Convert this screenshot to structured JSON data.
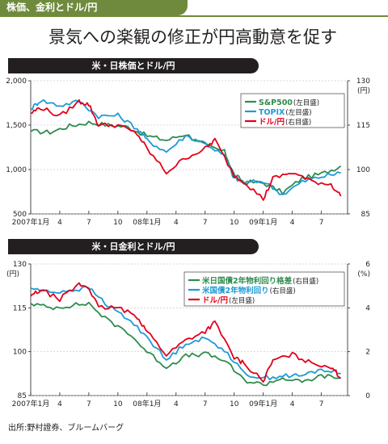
{
  "topic_tag": "株価、金利とドル/円",
  "headline": "景気への楽観の修正が円高動意を促す",
  "source": "出所:野村證券、ブルームバーグ",
  "colors": {
    "green": "#2e8b4e",
    "blue": "#1e9ad6",
    "red": "#e2001a",
    "brand": "#6f8a3c"
  },
  "chart_data": [
    {
      "type": "line",
      "title": "米・日株価とドル/円",
      "x_tick_labels": [
        "2007年1月",
        "4",
        "7",
        "10",
        "08年1月",
        "4",
        "7",
        "10",
        "09年1月",
        "4",
        "7"
      ],
      "x_range": [
        "2007-01",
        "2009-09"
      ],
      "left_axis": {
        "ticks": [
          "2,000",
          "1,500",
          "1,000",
          "500"
        ],
        "range": [
          500,
          2000
        ]
      },
      "right_axis": {
        "unit": "(円)",
        "ticks": [
          "130",
          "115",
          "100",
          "85"
        ],
        "range": [
          85,
          130
        ]
      },
      "legend_placement": "top-right",
      "series": [
        {
          "name": "S&P500",
          "axis_note": "(左目盛)",
          "color": "#2e8b4e",
          "axis": "left",
          "x": [
            "2007-01",
            "2007-03",
            "2007-05",
            "2007-07",
            "2007-09",
            "2007-11",
            "2008-01",
            "2008-03",
            "2008-05",
            "2008-07",
            "2008-09",
            "2008-10",
            "2008-11",
            "2009-01",
            "2009-03",
            "2009-05",
            "2009-07",
            "2009-09"
          ],
          "values": [
            1430,
            1420,
            1490,
            1530,
            1500,
            1480,
            1380,
            1330,
            1400,
            1270,
            1200,
            940,
            860,
            850,
            740,
            900,
            950,
            1040
          ]
        },
        {
          "name": "TOPIX",
          "axis_note": "(左目盛)",
          "color": "#1e9ad6",
          "axis": "left",
          "x": [
            "2007-01",
            "2007-02",
            "2007-04",
            "2007-06",
            "2007-08",
            "2007-10",
            "2007-12",
            "2008-01",
            "2008-03",
            "2008-05",
            "2008-07",
            "2008-09",
            "2008-10",
            "2008-11",
            "2009-01",
            "2009-03",
            "2009-05",
            "2009-07",
            "2009-09"
          ],
          "values": [
            1680,
            1780,
            1720,
            1770,
            1600,
            1610,
            1460,
            1330,
            1200,
            1380,
            1300,
            1150,
            900,
            850,
            870,
            720,
            860,
            920,
            960
          ]
        },
        {
          "name": "ドル/円",
          "axis_note": "(右目盛)",
          "color": "#e2001a",
          "axis": "right",
          "x": [
            "2007-01",
            "2007-02",
            "2007-04",
            "2007-06",
            "2007-07",
            "2007-08",
            "2007-10",
            "2007-12",
            "2008-01",
            "2008-03",
            "2008-05",
            "2008-07",
            "2008-08",
            "2008-10",
            "2008-11",
            "2009-01",
            "2009-02",
            "2009-04",
            "2009-06",
            "2009-08",
            "2009-09"
          ],
          "values": [
            119,
            121,
            118,
            123,
            122,
            115,
            115,
            112,
            107,
            99,
            104,
            107,
            110,
            98,
            96,
            90,
            97,
            99,
            96,
            95,
            91
          ]
        }
      ]
    },
    {
      "type": "line",
      "title": "米・日金利とドル/円",
      "x_tick_labels": [
        "2007年1月",
        "4",
        "7",
        "10",
        "08年1月",
        "4",
        "7",
        "10",
        "09年1月",
        "4",
        "7"
      ],
      "x_range": [
        "2007-01",
        "2009-09"
      ],
      "left_axis": {
        "unit": "(円)",
        "ticks": [
          "130",
          "115",
          "100",
          "85"
        ],
        "range": [
          85,
          130
        ]
      },
      "right_axis": {
        "unit": "(%)",
        "ticks": [
          "6",
          "4",
          "2",
          "0"
        ],
        "range": [
          0,
          6
        ]
      },
      "legend_placement": "top-right",
      "series": [
        {
          "name": "米日国債2年物利回り格差",
          "axis_note": "(右目盛)",
          "color": "#2e8b4e",
          "axis": "right",
          "x": [
            "2007-01",
            "2007-03",
            "2007-05",
            "2007-07",
            "2007-09",
            "2007-11",
            "2008-01",
            "2008-03",
            "2008-05",
            "2008-07",
            "2008-09",
            "2008-11",
            "2009-01",
            "2009-03",
            "2009-05",
            "2009-07",
            "2009-09"
          ],
          "values": [
            4.2,
            4.0,
            4.1,
            4.2,
            3.4,
            2.9,
            2.0,
            1.3,
            1.8,
            1.9,
            1.6,
            0.7,
            0.5,
            0.8,
            0.6,
            0.9,
            0.8
          ]
        },
        {
          "name": "米国債2年物利回り",
          "axis_note": "(右目盛)",
          "color": "#1e9ad6",
          "axis": "right",
          "x": [
            "2007-01",
            "2007-03",
            "2007-05",
            "2007-07",
            "2007-09",
            "2007-11",
            "2008-01",
            "2008-03",
            "2008-05",
            "2008-07",
            "2008-09",
            "2008-11",
            "2009-01",
            "2009-03",
            "2009-05",
            "2009-07",
            "2009-09"
          ],
          "values": [
            4.9,
            4.7,
            4.8,
            4.9,
            4.1,
            3.5,
            2.7,
            1.6,
            2.4,
            2.6,
            2.1,
            1.0,
            0.8,
            0.9,
            0.9,
            1.2,
            1.0
          ]
        },
        {
          "name": "ドル/円",
          "axis_note": "(左目盛)",
          "color": "#e2001a",
          "axis": "left",
          "x": [
            "2007-01",
            "2007-02",
            "2007-04",
            "2007-06",
            "2007-07",
            "2007-08",
            "2007-10",
            "2007-12",
            "2008-01",
            "2008-03",
            "2008-05",
            "2008-07",
            "2008-08",
            "2008-10",
            "2008-11",
            "2009-01",
            "2009-02",
            "2009-04",
            "2009-06",
            "2009-08",
            "2009-09"
          ],
          "values": [
            119,
            121,
            118,
            123,
            122,
            115,
            115,
            112,
            107,
            99,
            104,
            107,
            110,
            98,
            96,
            90,
            97,
            99,
            96,
            95,
            91
          ]
        }
      ]
    }
  ]
}
